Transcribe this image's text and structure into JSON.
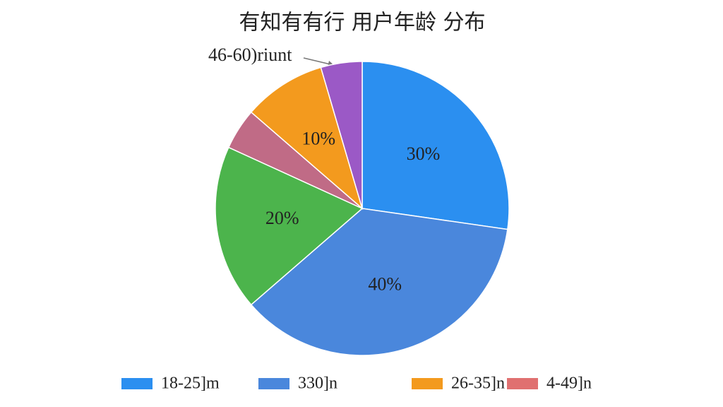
{
  "chart_data": {
    "type": "pie",
    "title": "有知有有行 用户年龄 分布",
    "values": [
      30,
      40,
      20,
      5,
      10,
      5
    ],
    "value_labels": [
      "30%",
      "40%",
      "20%",
      null,
      "10%",
      null
    ],
    "colors": [
      "#2b8ff0",
      "#4a87dc",
      "#4cb44c",
      "#c06b86",
      "#f39a1e",
      "#9b59c6"
    ],
    "annotation": "46-60)riunt",
    "legend": [
      {
        "label": "18-25]m",
        "color": "#2b8ff0"
      },
      {
        "label": "330]n",
        "color": "#4a87dc"
      },
      {
        "label": "26-35]n",
        "color": "#f39a1e"
      },
      {
        "label": "4-49]n",
        "color": "#e07070"
      }
    ]
  }
}
